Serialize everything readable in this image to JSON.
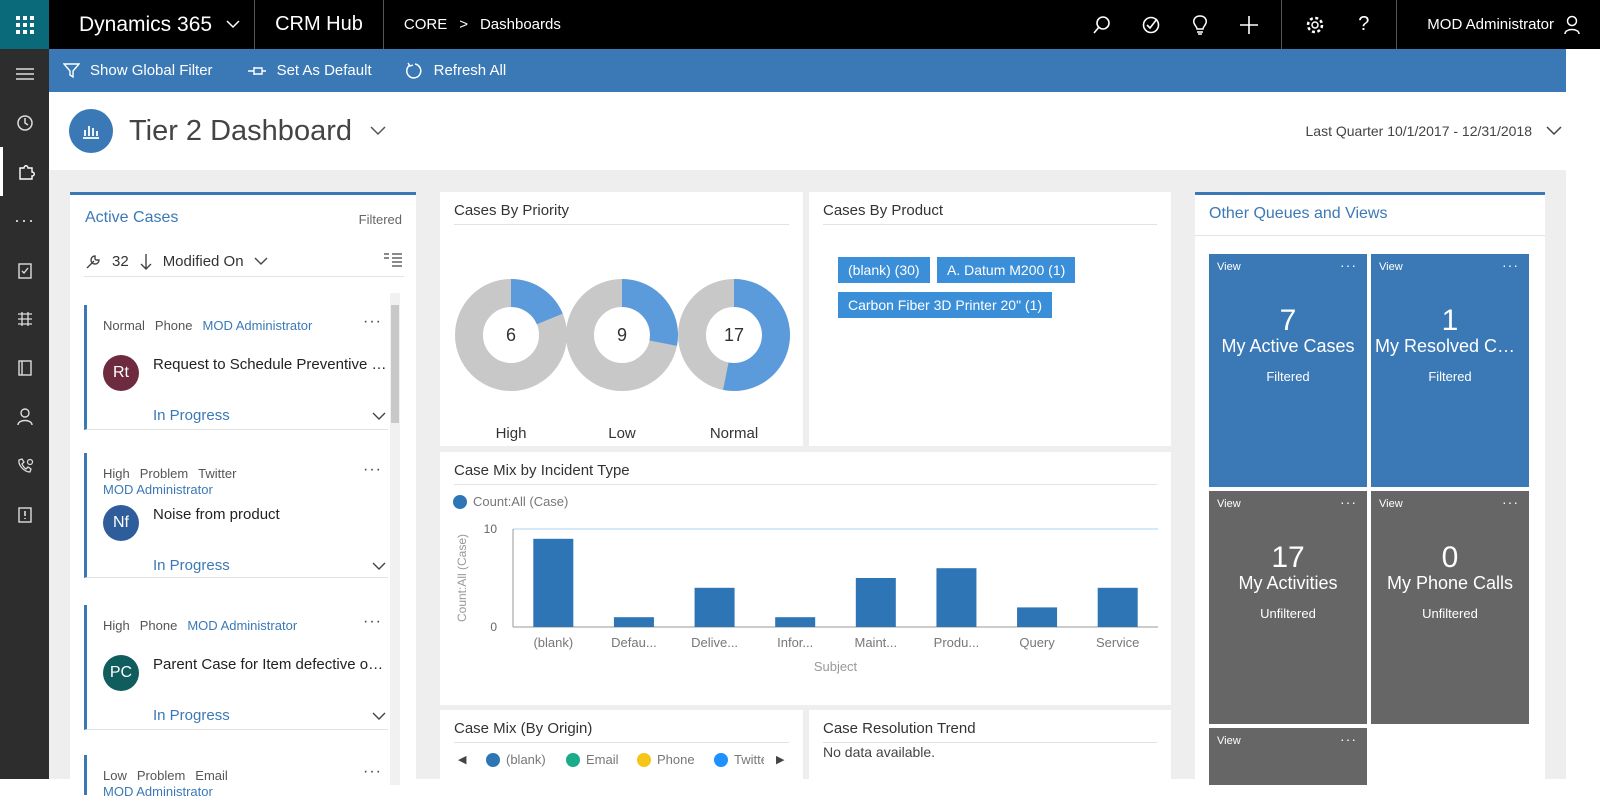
{
  "topbar": {
    "brand": "Dynamics 365",
    "app": "CRM Hub",
    "crumb_root": "CORE",
    "crumb_sep": ">",
    "crumb_current": "Dashboards",
    "user": "MOD Administrator",
    "icons": [
      "search-icon",
      "task-icon",
      "lightbulb-icon",
      "plus-icon",
      "gear-icon",
      "help-icon"
    ]
  },
  "commands": {
    "filter": "Show Global Filter",
    "default": "Set As Default",
    "refresh": "Refresh All"
  },
  "dashboard": {
    "title": "Tier 2 Dashboard",
    "date_range": "Last Quarter 10/1/2017 - 12/31/2018"
  },
  "active_cases": {
    "title": "Active Cases",
    "filtered": "Filtered",
    "count": "32",
    "sort": "Modified On",
    "items": [
      {
        "meta1": "Normal",
        "meta2": "Phone",
        "owner": "MOD Administrator",
        "initials": "Rt",
        "avatar_color": "#6e2b3f",
        "title": "Request to Schedule Preventive Maintenance",
        "status": "In Progress"
      },
      {
        "meta1": "High",
        "meta2": "Problem",
        "meta3": "Twitter",
        "owner": "MOD Administrator",
        "initials": "Nf",
        "avatar_color": "#2f5d9c",
        "title": "Noise from product",
        "status": "In Progress"
      },
      {
        "meta1": "High",
        "meta2": "Phone",
        "owner": "MOD Administrator",
        "initials": "PC",
        "avatar_color": "#0f5d5d",
        "title": "Parent Case for Item defective on delivery",
        "status": "In Progress"
      },
      {
        "meta1": "Low",
        "meta2": "Problem",
        "meta3": "Email",
        "owner": "MOD Administrator"
      }
    ]
  },
  "cases_by_priority": {
    "title": "Cases By Priority",
    "chart_data": {
      "type": "pie",
      "categories": [
        "High",
        "Low",
        "Normal"
      ],
      "values": [
        6,
        9,
        17
      ],
      "total": 32,
      "title": "Cases By Priority"
    }
  },
  "cases_by_product": {
    "title": "Cases By Product",
    "tags": [
      "(blank) (30)",
      "A. Datum M200 (1)",
      "Carbon Fiber 3D Printer 20\" (1)"
    ]
  },
  "case_mix_incident": {
    "title": "Case Mix by Incident Type",
    "chart_data": {
      "type": "bar",
      "title": "Case Mix by Incident Type",
      "categories": [
        "(blank)",
        "Defau...",
        "Delive...",
        "Infor...",
        "Maint...",
        "Produ...",
        "Query",
        "Service"
      ],
      "series": [
        {
          "name": "Count:All (Case)",
          "values": [
            9,
            1,
            4,
            1,
            5,
            6,
            2,
            4
          ]
        }
      ],
      "xlabel": "Subject",
      "ylabel": "Count:All (Case)",
      "ylim": [
        0,
        10
      ],
      "yticks": [
        "0",
        "10"
      ],
      "legend": "top-left",
      "color": "#2e75b6"
    }
  },
  "case_mix_origin": {
    "title": "Case Mix (By Origin)",
    "legend": [
      {
        "label": "(blank)",
        "color": "#2e75b6"
      },
      {
        "label": "Email",
        "color": "#1aab8a"
      },
      {
        "label": "Phone",
        "color": "#f5c518"
      },
      {
        "label": "Twitte",
        "color": "#1e90ff"
      }
    ]
  },
  "case_resolution": {
    "title": "Case Resolution Trend",
    "empty": "No data available."
  },
  "other_queues": {
    "title": "Other Queues and Views",
    "tiles": [
      {
        "view": "View",
        "count": "7",
        "name": "My Active Cases",
        "filter": "Filtered",
        "color": "blue"
      },
      {
        "view": "View",
        "count": "1",
        "name": "My Resolved Cases",
        "filter": "Filtered",
        "color": "blue"
      },
      {
        "view": "View",
        "count": "17",
        "name": "My Activities",
        "filter": "Unfiltered",
        "color": "gray"
      },
      {
        "view": "View",
        "count": "0",
        "name": "My Phone Calls",
        "filter": "Unfiltered",
        "color": "gray"
      },
      {
        "view": "View",
        "color": "gray"
      }
    ]
  }
}
